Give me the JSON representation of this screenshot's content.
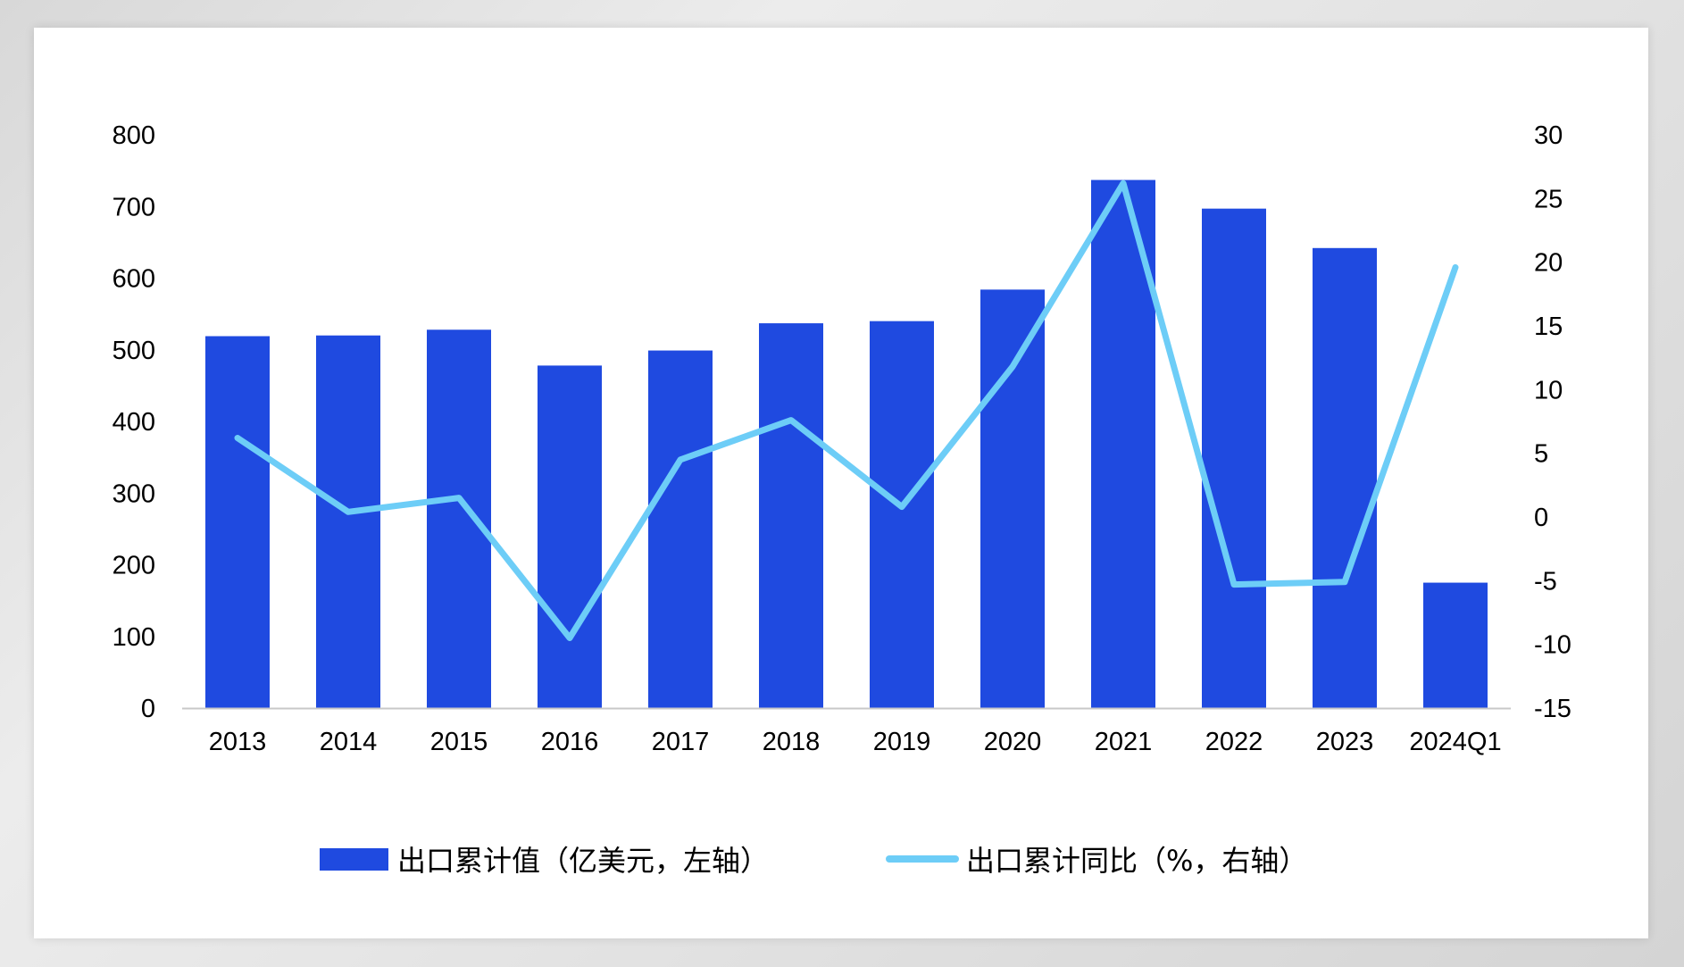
{
  "chart_data": {
    "type": "bar",
    "categories": [
      "2013",
      "2014",
      "2015",
      "2016",
      "2017",
      "2018",
      "2019",
      "2020",
      "2021",
      "2022",
      "2023",
      "2024Q1"
    ],
    "series": [
      {
        "name": "出口累计值（亿美元，左轴）",
        "type": "bar",
        "axis": "left",
        "color": "#1f4ae0",
        "values": [
          519,
          520,
          528,
          478,
          499,
          537,
          540,
          584,
          737,
          697,
          642,
          175
        ]
      },
      {
        "name": "出口累计同比（%，右轴）",
        "type": "line",
        "axis": "right",
        "color": "#6dcdf7",
        "values": [
          6.2,
          0.4,
          1.5,
          -9.5,
          4.5,
          7.6,
          0.8,
          11.8,
          26.2,
          -5.3,
          -5.1,
          19.6
        ]
      }
    ],
    "left_axis": {
      "ylim": [
        0,
        800
      ],
      "ticks": [
        "800",
        "700",
        "600",
        "500",
        "400",
        "300",
        "200",
        "100",
        "0"
      ]
    },
    "right_axis": {
      "ylim": [
        -15,
        30
      ],
      "ticks": [
        "30",
        "25",
        "20",
        "15",
        "10",
        "5",
        "0",
        "-5",
        "-10",
        "-15"
      ]
    },
    "grid": false,
    "legend_position": "bottom"
  }
}
